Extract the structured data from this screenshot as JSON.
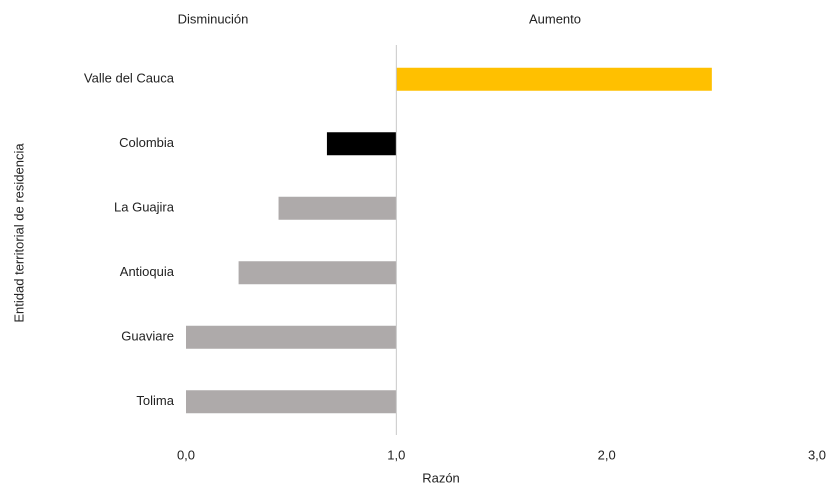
{
  "chart_data": {
    "type": "bar",
    "orientation": "horizontal",
    "annotations": [
      "Disminución",
      "Aumento"
    ],
    "xlabel": "Razón",
    "ylabel": "Entidad territorial de residencia",
    "categories": [
      "Valle del Cauca",
      "Colombia",
      "La Guajira",
      "Antioquia",
      "Guaviare",
      "Tolima"
    ],
    "values": [
      2.5,
      0.67,
      0.44,
      0.25,
      0.0,
      0.0
    ],
    "colors": [
      "#ffc000",
      "#000000",
      "#aeaaaa",
      "#aeaaaa",
      "#aeaaaa",
      "#aeaaaa"
    ],
    "baseline": 1,
    "xlim": [
      0,
      3
    ],
    "xticks": [
      {
        "value": 0,
        "label": "0,0"
      },
      {
        "value": 1,
        "label": "1,0"
      },
      {
        "value": 2,
        "label": "2,0"
      },
      {
        "value": 3,
        "label": "3,0"
      }
    ],
    "grid": false
  }
}
